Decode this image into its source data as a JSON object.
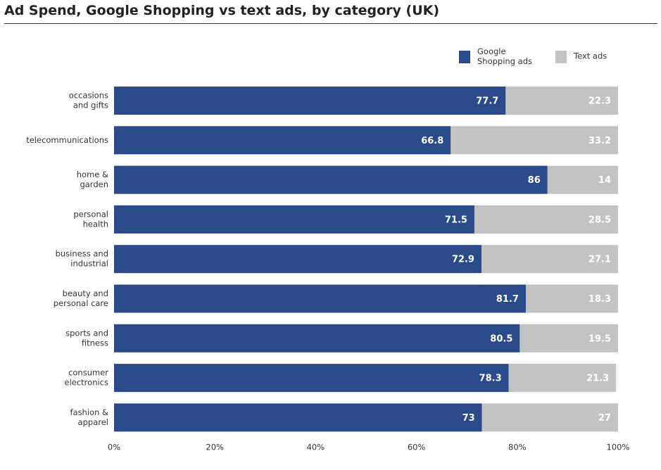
{
  "chart_data": {
    "type": "bar",
    "orientation": "horizontal",
    "stacked": true,
    "title": "Ad Spend, Google Shopping vs text ads, by category (UK)",
    "categories": [
      [
        "occasions",
        "and gifts"
      ],
      [
        "telecommunications"
      ],
      [
        "home &",
        "garden"
      ],
      [
        "personal",
        "health"
      ],
      [
        "business and",
        "industrial"
      ],
      [
        "beauty and",
        "personal care"
      ],
      [
        "sports and",
        "fitness"
      ],
      [
        "consumer",
        "electronics"
      ],
      [
        "fashion &",
        "apparel"
      ]
    ],
    "series": [
      {
        "name": [
          "Google",
          "Shopping ads"
        ],
        "color": "#2a4a8a",
        "values": [
          77.7,
          66.8,
          86,
          71.5,
          72.9,
          81.7,
          80.5,
          78.3,
          73
        ]
      },
      {
        "name": [
          "Text ads"
        ],
        "color": "#c3c3c3",
        "values": [
          22.3,
          33.2,
          14,
          28.5,
          27.1,
          18.3,
          19.5,
          21.3,
          27
        ]
      }
    ],
    "xlim": [
      0,
      100
    ],
    "xticks": [
      "0%",
      "20%",
      "40%",
      "60%",
      "80%",
      "100%"
    ],
    "grid": false,
    "legend_position": "top-right",
    "data_label_color": "#ffffff"
  }
}
